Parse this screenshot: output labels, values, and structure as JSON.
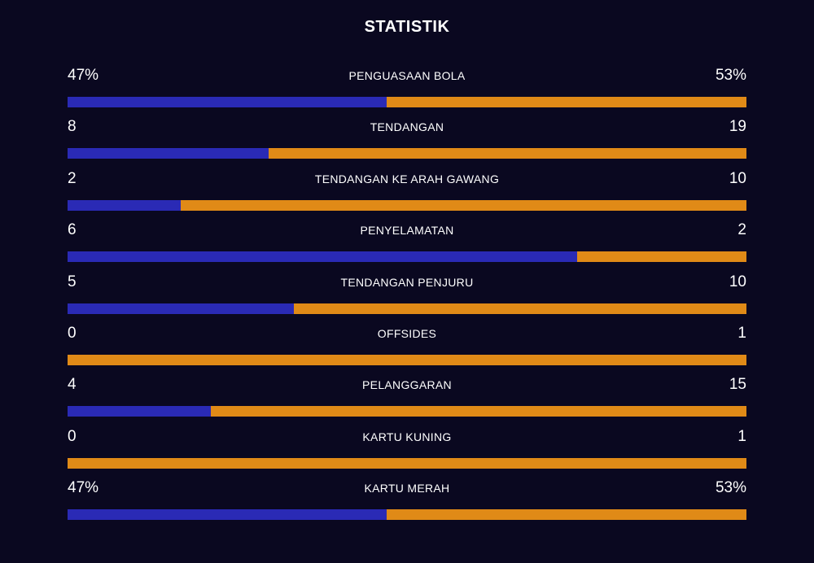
{
  "title": "STATISTIK",
  "colors": {
    "background": "#0a0820",
    "home": "#2a2ab5",
    "away": "#e08a17",
    "text": "#ffffff"
  },
  "stats": [
    {
      "label": "PENGUASAAN BOLA",
      "home": "47%",
      "away": "53%",
      "home_share": 0.47
    },
    {
      "label": "TENDANGAN",
      "home": "8",
      "away": "19",
      "home_share": 0.2963
    },
    {
      "label": "TENDANGAN KE ARAH GAWANG",
      "home": "2",
      "away": "10",
      "home_share": 0.1667
    },
    {
      "label": "PENYELAMATAN",
      "home": "6",
      "away": "2",
      "home_share": 0.75
    },
    {
      "label": "TENDANGAN PENJURU",
      "home": "5",
      "away": "10",
      "home_share": 0.3333
    },
    {
      "label": "OFFSIDES",
      "home": "0",
      "away": "1",
      "home_share": 0
    },
    {
      "label": "PELANGGARAN",
      "home": "4",
      "away": "15",
      "home_share": 0.2105
    },
    {
      "label": "KARTU KUNING",
      "home": "0",
      "away": "1",
      "home_share": 0
    },
    {
      "label": "KARTU MERAH",
      "home": "47%",
      "away": "53%",
      "home_share": 0.47
    }
  ]
}
